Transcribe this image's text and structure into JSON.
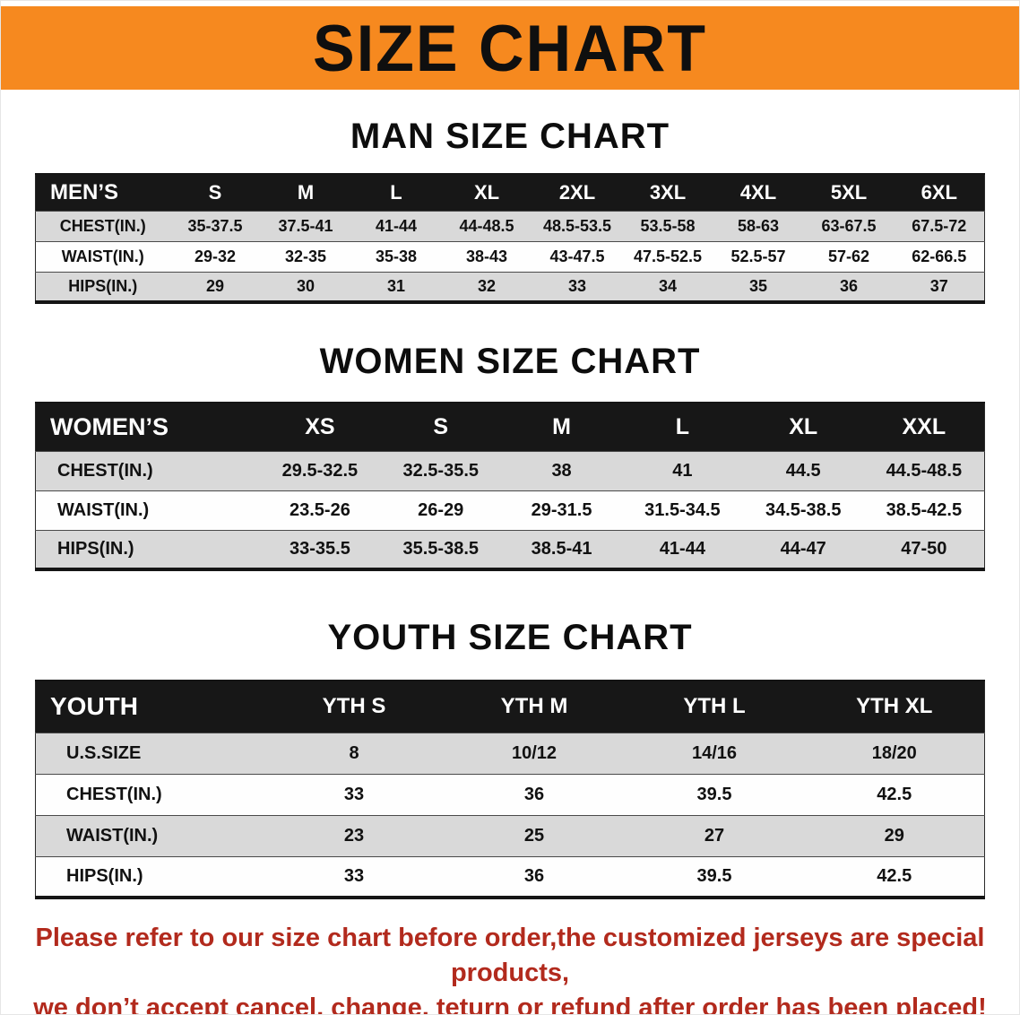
{
  "banner": {
    "title": "SIZE CHART"
  },
  "colors": {
    "banner-orange": "#f6891f",
    "header-black": "#171717",
    "row-gray": "#d9d9d9",
    "notice-red": "#b22a1d"
  },
  "sections": [
    {
      "id": "men",
      "heading": "MAN SIZE CHART",
      "table": {
        "header": [
          "MEN’S",
          "S",
          "M",
          "L",
          "XL",
          "2XL",
          "3XL",
          "4XL",
          "5XL",
          "6XL"
        ],
        "rows": [
          [
            "CHEST(IN.)",
            "35-37.5",
            "37.5-41",
            "41-44",
            "44-48.5",
            "48.5-53.5",
            "53.5-58",
            "58-63",
            "63-67.5",
            "67.5-72"
          ],
          [
            "WAIST(IN.)",
            "29-32",
            "32-35",
            "35-38",
            "38-43",
            "43-47.5",
            "47.5-52.5",
            "52.5-57",
            "57-62",
            "62-66.5"
          ],
          [
            "HIPS(IN.)",
            "29",
            "30",
            "31",
            "32",
            "33",
            "34",
            "35",
            "36",
            "37"
          ]
        ]
      }
    },
    {
      "id": "women",
      "heading": "WOMEN SIZE CHART",
      "table": {
        "header": [
          "WOMEN’S",
          "XS",
          "S",
          "M",
          "L",
          "XL",
          "XXL"
        ],
        "rows": [
          [
            "CHEST(IN.)",
            "29.5-32.5",
            "32.5-35.5",
            "38",
            "41",
            "44.5",
            "44.5-48.5"
          ],
          [
            "WAIST(IN.)",
            "23.5-26",
            "26-29",
            "29-31.5",
            "31.5-34.5",
            "34.5-38.5",
            "38.5-42.5"
          ],
          [
            "HIPS(IN.)",
            "33-35.5",
            "35.5-38.5",
            "38.5-41",
            "41-44",
            "44-47",
            "47-50"
          ]
        ]
      }
    },
    {
      "id": "youth",
      "heading": "YOUTH SIZE CHART",
      "table": {
        "header": [
          "YOUTH",
          "YTH S",
          "YTH M",
          "YTH L",
          "YTH XL"
        ],
        "rows": [
          [
            "U.S.SIZE",
            "8",
            "10/12",
            "14/16",
            "18/20"
          ],
          [
            "CHEST(IN.)",
            "33",
            "36",
            "39.5",
            "42.5"
          ],
          [
            "WAIST(IN.)",
            "23",
            "25",
            "27",
            "29"
          ],
          [
            "HIPS(IN.)",
            "33",
            "36",
            "39.5",
            "42.5"
          ]
        ]
      }
    }
  ],
  "footer": {
    "line1": "Please refer to our size chart before order,the customized jerseys are special products,",
    "line2": "we don’t accept cancel, change, teturn or refund after order has been placed!"
  }
}
